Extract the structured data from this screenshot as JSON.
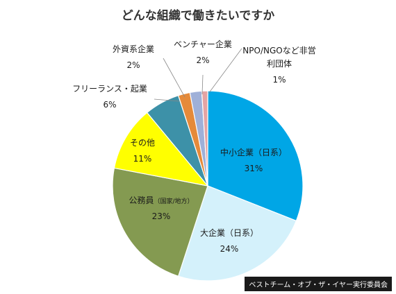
{
  "chart_data": {
    "type": "pie",
    "title": "どんな組織で働きたいですか",
    "source": "ベストチーム・オブ・ザ・イヤー実行委員会",
    "unit": "%",
    "slices": [
      {
        "label": "中小企業（日系）",
        "value": 31,
        "value_label": "31%",
        "color": "#00a6e6"
      },
      {
        "label": "大企業（日系）",
        "value": 24,
        "value_label": "24%",
        "color": "#d4f1fb"
      },
      {
        "label": "公務員",
        "sublabel": "（国家/地方）",
        "value": 23,
        "value_label": "23%",
        "color": "#849a51"
      },
      {
        "label": "その他",
        "value": 11,
        "value_label": "11%",
        "color": "#ffff00"
      },
      {
        "label": "フリーランス・起業",
        "value": 6,
        "value_label": "6%",
        "color": "#3d91a8"
      },
      {
        "label": "外資系企業",
        "value": 2,
        "value_label": "2%",
        "color": "#e58a3a"
      },
      {
        "label": "ベンチャー企業",
        "value": 2,
        "value_label": "2%",
        "color": "#9fb0d8"
      },
      {
        "label": "NPO/NGOなど非営利団体",
        "label_lines": [
          "NPO/NGOなど非営",
          "利団体"
        ],
        "value": 1,
        "value_label": "1%",
        "color": "#e3a4a4"
      }
    ]
  }
}
